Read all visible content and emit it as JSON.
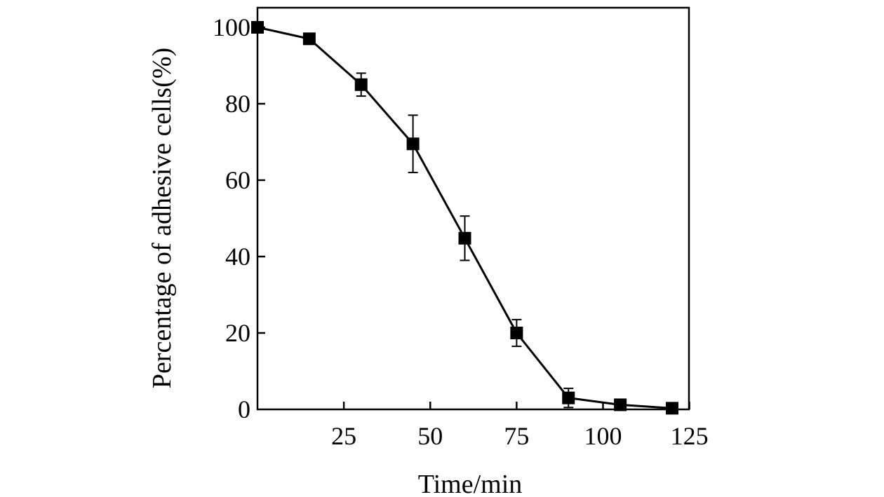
{
  "chart_data": {
    "type": "line",
    "title": "",
    "xlabel": "Time/min",
    "ylabel": "Percentage of adhesive cells(%)",
    "xlim": [
      0,
      120
    ],
    "ylim": [
      0,
      100
    ],
    "xticks": [
      25,
      50,
      75,
      100,
      125
    ],
    "yticks": [
      0,
      20,
      40,
      60,
      80,
      100
    ],
    "grid": false,
    "legend": "none",
    "marker": "square",
    "colors": {
      "line": "#000000",
      "marker": "#000000"
    },
    "series": [
      {
        "x": [
          0,
          15,
          30,
          45,
          60,
          75,
          90,
          105,
          120
        ],
        "y": [
          100,
          97,
          85,
          69.5,
          44.8,
          20,
          3,
          1.2,
          0.3
        ],
        "error": [
          0,
          1,
          3,
          7.5,
          5.8,
          3.5,
          2.5,
          0.8,
          0.3
        ]
      }
    ]
  }
}
